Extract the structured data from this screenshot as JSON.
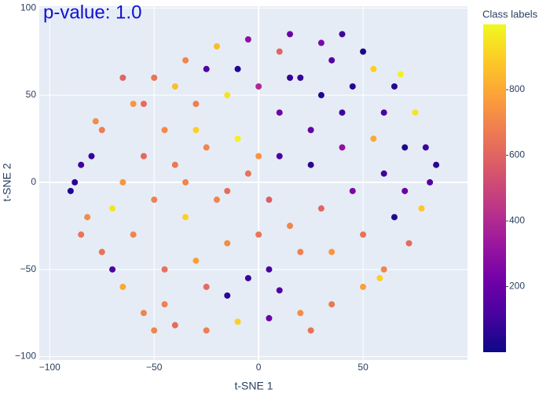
{
  "chart_data": {
    "type": "scatter",
    "title": "p-value: 1.0",
    "x_label": "t-SNE 1",
    "y_label": "t-SNE 2",
    "colorbar_title": "Class labels",
    "xlim": [
      -105,
      100
    ],
    "ylim": [
      -102,
      101
    ],
    "xticks": [
      {
        "value": -100,
        "label": "−100"
      },
      {
        "value": -50,
        "label": "−50"
      },
      0,
      50
    ],
    "yticks": [
      {
        "value": -100,
        "label": "−100"
      },
      {
        "value": -50,
        "label": "−50"
      },
      0,
      50,
      100
    ],
    "clim": [
      0,
      999
    ],
    "cticks": [
      200,
      400,
      600,
      800
    ],
    "colorscale": [
      "#0d0887",
      "#46039f",
      "#7201a8",
      "#9c179e",
      "#bd3786",
      "#d8576b",
      "#ed7953",
      "#fb9f3a",
      "#fdca26",
      "#f0f921"
    ],
    "grid": true,
    "x": [
      20,
      35,
      45,
      60,
      70,
      55,
      30,
      10,
      -5,
      -20,
      -35,
      -50,
      -60,
      -75,
      -85,
      -88,
      -82,
      -75,
      -65,
      -55,
      -40,
      -25,
      -10,
      5,
      20,
      35,
      50,
      60,
      72,
      78,
      82,
      80,
      75,
      65,
      40,
      25,
      10,
      0,
      -15,
      -30,
      -45,
      -55,
      -65,
      -50,
      -35,
      -20,
      -5,
      10,
      25,
      40,
      55,
      60,
      45,
      30,
      15,
      0,
      -15,
      -30,
      -45,
      -60,
      -70,
      -40,
      -25,
      -10,
      5,
      20,
      35,
      50,
      65,
      70,
      -5,
      5,
      -15,
      10,
      -25,
      -45,
      -70,
      -80,
      -78,
      -65,
      -40,
      -25,
      -10,
      15,
      40,
      50,
      68,
      85,
      58,
      -55,
      -30,
      15,
      30,
      0,
      -15,
      -35,
      -90,
      -85,
      -50,
      25
    ],
    "y": [
      60,
      70,
      55,
      40,
      20,
      65,
      80,
      75,
      82,
      78,
      70,
      60,
      45,
      30,
      10,
      0,
      -20,
      -40,
      -60,
      -75,
      -82,
      -85,
      -80,
      -78,
      -75,
      -70,
      -60,
      -50,
      -35,
      -15,
      0,
      20,
      40,
      55,
      40,
      30,
      40,
      55,
      50,
      45,
      30,
      15,
      0,
      -10,
      -20,
      -10,
      5,
      15,
      10,
      20,
      25,
      5,
      -5,
      -15,
      -25,
      -30,
      -35,
      -45,
      -50,
      -30,
      -15,
      10,
      20,
      25,
      -10,
      -40,
      -40,
      -30,
      -20,
      -5,
      -55,
      -50,
      -65,
      -62,
      -60,
      -70,
      -50,
      15,
      35,
      60,
      55,
      65,
      65,
      85,
      85,
      75,
      62,
      10,
      -55,
      45,
      30,
      60,
      50,
      15,
      -5,
      0,
      -5,
      -30,
      -85,
      -85
    ],
    "colors": [
      80,
      150,
      50,
      120,
      30,
      900,
      250,
      600,
      300,
      850,
      700,
      650,
      750,
      680,
      100,
      60,
      720,
      640,
      800,
      700,
      620,
      680,
      900,
      200,
      720,
      660,
      780,
      700,
      620,
      880,
      150,
      90,
      950,
      60,
      100,
      180,
      220,
      400,
      950,
      680,
      720,
      610,
      750,
      690,
      900,
      700,
      640,
      120,
      60,
      300,
      800,
      100,
      250,
      600,
      700,
      650,
      720,
      780,
      640,
      700,
      950,
      660,
      700,
      980,
      580,
      690,
      750,
      640,
      40,
      200,
      80,
      120,
      60,
      150,
      620,
      690,
      130,
      80,
      720,
      600,
      860,
      130,
      40,
      200,
      100,
      30,
      980,
      50,
      900,
      620,
      900,
      70,
      40,
      750,
      630,
      700,
      40,
      650,
      700,
      640
    ]
  }
}
